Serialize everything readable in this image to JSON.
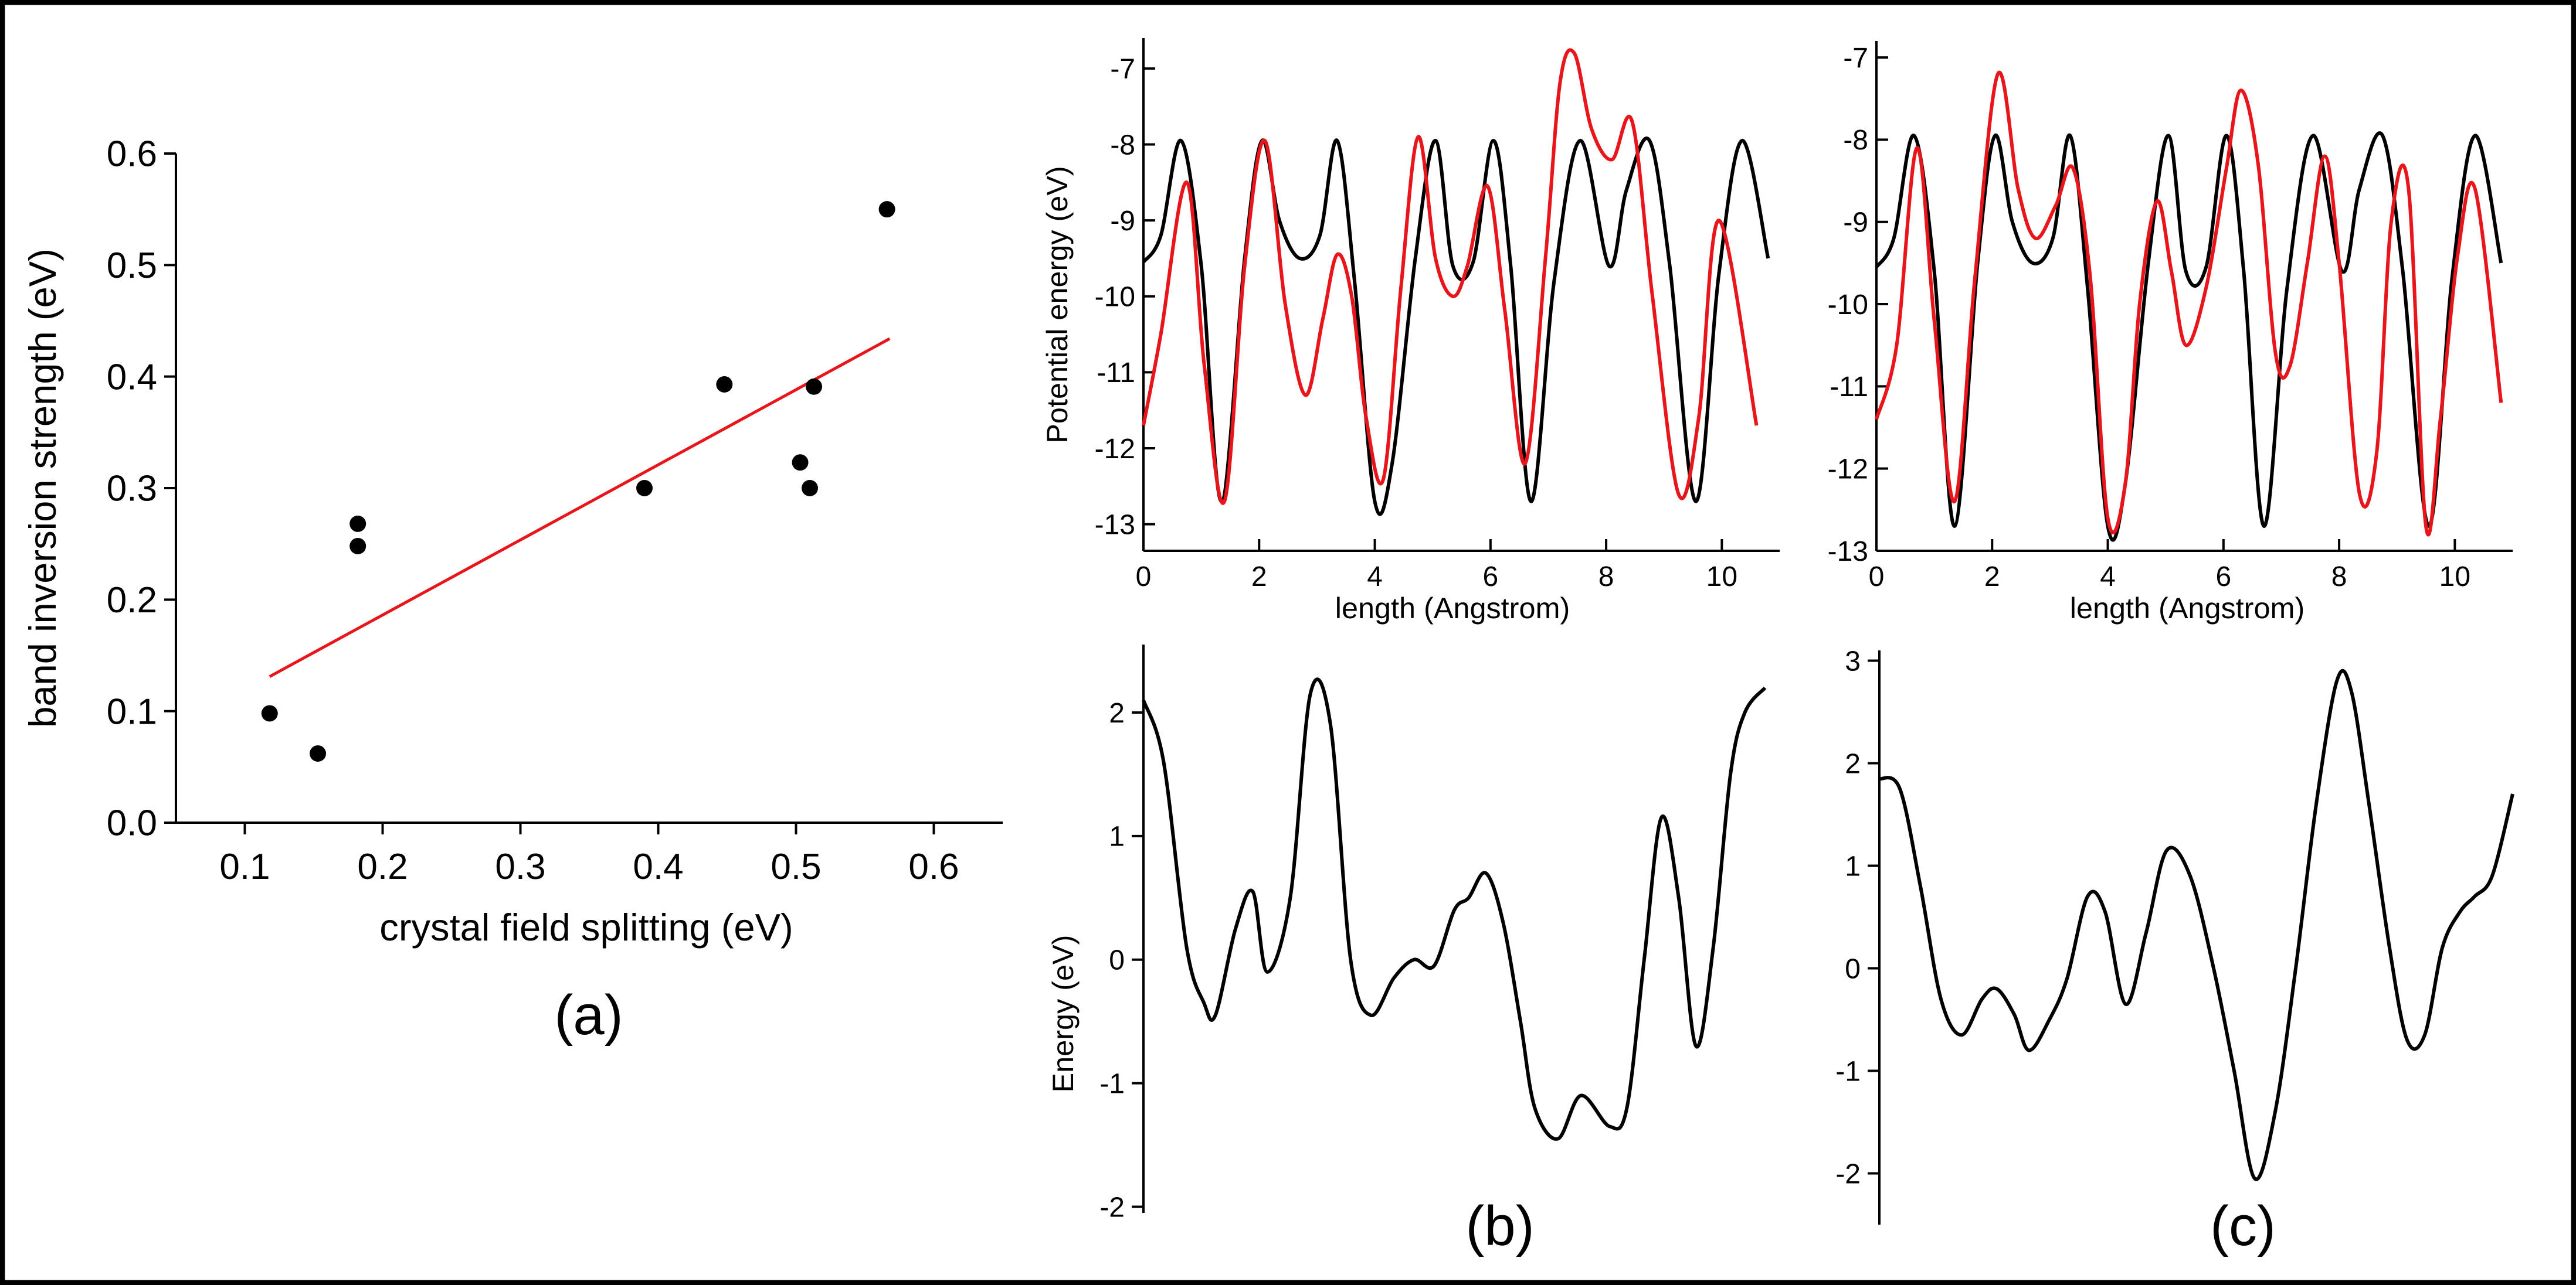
{
  "panel_labels": {
    "a": "(a)",
    "b": "(b)",
    "c": "(c)"
  },
  "colors": {
    "black": "#000000",
    "red": "#e8151b",
    "frame": "#000000"
  },
  "chart_data": [
    {
      "id": "a",
      "type": "scatter",
      "xlabel": "crystal field splitting (eV)",
      "ylabel": "band inversion strength (eV)",
      "xlim": [
        0.05,
        0.65
      ],
      "ylim": [
        0.0,
        0.6
      ],
      "xticks": [
        0.1,
        0.2,
        0.3,
        0.4,
        0.5,
        0.6
      ],
      "xtick_labels": [
        "0.1",
        "0.2",
        "0.3",
        "0.4",
        "0.5",
        "0.6"
      ],
      "yticks": [
        0.0,
        0.1,
        0.2,
        0.3,
        0.4,
        0.5,
        0.6
      ],
      "ytick_labels": [
        "0.0",
        "0.1",
        "0.2",
        "0.3",
        "0.4",
        "0.5",
        "0.6"
      ],
      "points": [
        [
          0.118,
          0.098
        ],
        [
          0.153,
          0.062
        ],
        [
          0.182,
          0.268
        ],
        [
          0.182,
          0.248
        ],
        [
          0.39,
          0.3
        ],
        [
          0.448,
          0.393
        ],
        [
          0.503,
          0.323
        ],
        [
          0.51,
          0.3
        ],
        [
          0.513,
          0.391
        ],
        [
          0.566,
          0.55
        ]
      ],
      "fit_line": {
        "x": [
          0.118,
          0.568
        ],
        "y": [
          0.131,
          0.434
        ]
      }
    },
    {
      "id": "b-top",
      "type": "line",
      "xlabel": "length (Angstrom)",
      "ylabel": "Potential energy (eV)",
      "xlim": [
        0,
        11
      ],
      "ylim": [
        -13.35,
        -6.6
      ],
      "xticks": [
        0,
        2,
        4,
        6,
        8,
        10
      ],
      "xtick_labels": [
        "0",
        "2",
        "4",
        "6",
        "8",
        "10"
      ],
      "yticks": [
        -13,
        -12,
        -11,
        -10,
        -9,
        -8,
        -7
      ],
      "ytick_labels": [
        "-13",
        "-12",
        "-11",
        "-10",
        "-9",
        "-8",
        "-7"
      ],
      "series": [
        {
          "name": "black",
          "x": [
            0,
            0.3,
            0.65,
            1,
            1.35,
            1.75,
            2.05,
            2.35,
            2.7,
            3.05,
            3.35,
            3.65,
            4,
            4.3,
            4.7,
            5.05,
            5.35,
            5.7,
            6.05,
            6.35,
            6.7,
            7.1,
            7.55,
            8.05,
            8.35,
            8.75,
            9.1,
            9.55,
            9.95,
            10.35,
            10.8
          ],
          "y": [
            -9.55,
            -9.2,
            -7.95,
            -9.6,
            -12.7,
            -9.5,
            -7.95,
            -9,
            -9.5,
            -9.2,
            -7.95,
            -9.8,
            -12.7,
            -12.2,
            -9.5,
            -7.95,
            -9.6,
            -9.55,
            -7.95,
            -9.6,
            -12.7,
            -9.8,
            -7.95,
            -9.6,
            -8.6,
            -7.95,
            -9.6,
            -12.7,
            -9.7,
            -7.95,
            -9.5
          ]
        },
        {
          "name": "red",
          "x": [
            0,
            0.3,
            0.75,
            1.05,
            1.4,
            1.75,
            2.1,
            2.45,
            2.8,
            3.1,
            3.35,
            3.6,
            3.85,
            4.15,
            4.45,
            4.75,
            5.05,
            5.35,
            5.6,
            5.95,
            6.25,
            6.6,
            6.95,
            7.2,
            7.45,
            7.75,
            8.1,
            8.45,
            8.8,
            9.25,
            9.6,
            9.95,
            10.6
          ],
          "y": [
            -11.7,
            -10.5,
            -8.5,
            -10.9,
            -12.7,
            -9.6,
            -7.95,
            -10.1,
            -11.3,
            -10.3,
            -9.45,
            -10.0,
            -11.6,
            -12.4,
            -9.9,
            -7.9,
            -9.5,
            -10.0,
            -9.6,
            -8.55,
            -10.2,
            -12.2,
            -9.5,
            -7.2,
            -6.8,
            -7.8,
            -8.2,
            -7.7,
            -10.0,
            -12.6,
            -11.6,
            -9.0,
            -11.7
          ]
        }
      ]
    },
    {
      "id": "c-top",
      "type": "line",
      "xlabel": "length (Angstrom)",
      "ylabel": "",
      "xlim": [
        0,
        11
      ],
      "ylim": [
        -13,
        -6.8
      ],
      "xticks": [
        0,
        2,
        4,
        6,
        8,
        10
      ],
      "xtick_labels": [
        "0",
        "2",
        "4",
        "6",
        "8",
        "10"
      ],
      "yticks": [
        -13,
        -12,
        -11,
        -10,
        -9,
        -8,
        -7
      ],
      "ytick_labels": [
        "-13",
        "-12",
        "-11",
        "-10",
        "-9",
        "-8",
        "-7"
      ],
      "series": [
        {
          "name": "black",
          "x": [
            0,
            0.3,
            0.65,
            1,
            1.35,
            1.75,
            2.05,
            2.35,
            2.7,
            3.05,
            3.35,
            3.65,
            4,
            4.3,
            4.7,
            5.05,
            5.35,
            5.7,
            6.05,
            6.35,
            6.7,
            7.1,
            7.55,
            8.05,
            8.35,
            8.75,
            9.1,
            9.55,
            9.95,
            10.35,
            10.8
          ],
          "y": [
            -9.55,
            -9.2,
            -7.95,
            -9.6,
            -12.7,
            -9.5,
            -7.95,
            -9,
            -9.5,
            -9.2,
            -7.95,
            -9.8,
            -12.7,
            -12.2,
            -9.5,
            -7.95,
            -9.6,
            -9.55,
            -7.95,
            -9.6,
            -12.7,
            -9.8,
            -7.95,
            -9.6,
            -8.6,
            -7.95,
            -9.6,
            -12.7,
            -9.7,
            -7.95,
            -9.5
          ]
        },
        {
          "name": "red",
          "x": [
            0,
            0.35,
            0.7,
            1.0,
            1.35,
            1.7,
            2.1,
            2.45,
            2.75,
            3.1,
            3.4,
            3.7,
            4.0,
            4.3,
            4.55,
            4.85,
            5.1,
            5.35,
            5.7,
            6.05,
            6.3,
            6.6,
            6.9,
            7.15,
            7.45,
            7.75,
            8.0,
            8.35,
            8.65,
            8.9,
            9.2,
            9.5,
            9.75,
            10.05,
            10.35,
            10.8
          ],
          "y": [
            -11.4,
            -10.5,
            -8.1,
            -10.2,
            -12.4,
            -9.7,
            -7.2,
            -8.6,
            -9.2,
            -8.8,
            -8.35,
            -9.7,
            -12.6,
            -12.2,
            -10.0,
            -8.75,
            -9.6,
            -10.5,
            -9.8,
            -8.35,
            -7.4,
            -8.3,
            -10.6,
            -10.75,
            -9.5,
            -8.2,
            -9.5,
            -12.3,
            -11.8,
            -9.0,
            -8.6,
            -12.7,
            -11.4,
            -9.4,
            -8.6,
            -11.2
          ]
        }
      ]
    },
    {
      "id": "b-bottom",
      "type": "line",
      "xlabel": "",
      "ylabel": "Energy (eV)",
      "xlim": [
        0,
        10.8
      ],
      "ylim": [
        -2.05,
        2.55
      ],
      "yticks": [
        -2,
        -1,
        0,
        1,
        2
      ],
      "ytick_labels": [
        "-2",
        "-1",
        "0",
        "1",
        "2"
      ],
      "series": [
        {
          "name": "black",
          "x": [
            0,
            0.35,
            0.75,
            1.05,
            1.25,
            1.6,
            1.9,
            2.15,
            2.55,
            2.9,
            3.25,
            3.6,
            3.95,
            4.35,
            4.7,
            5.05,
            5.4,
            5.65,
            5.95,
            6.25,
            6.55,
            6.8,
            7.2,
            7.6,
            8.1,
            8.4,
            8.7,
            9.0,
            9.3,
            9.6,
            9.9,
            10.2,
            10.45,
            10.8
          ],
          "y": [
            2.1,
            1.6,
            0.1,
            -0.35,
            -0.45,
            0.25,
            0.55,
            -0.1,
            0.5,
            2.15,
            1.9,
            0.0,
            -0.45,
            -0.15,
            -0.0,
            -0.05,
            0.4,
            0.5,
            0.7,
            0.3,
            -0.5,
            -1.2,
            -1.45,
            -1.1,
            -1.35,
            -1.2,
            0.0,
            1.15,
            0.5,
            -0.7,
            0.1,
            1.5,
            2.0,
            2.2
          ]
        }
      ]
    },
    {
      "id": "c-bottom",
      "type": "line",
      "xlabel": "",
      "ylabel": "",
      "xlim": [
        0,
        10.8
      ],
      "ylim": [
        -2.5,
        3.1
      ],
      "yticks": [
        -2,
        -1,
        0,
        1,
        2,
        3
      ],
      "ytick_labels": [
        "-2",
        "-1",
        "0",
        "1",
        "2",
        "3"
      ],
      "series": [
        {
          "name": "black",
          "x": [
            0,
            0.35,
            0.7,
            1.05,
            1.4,
            1.75,
            2.0,
            2.3,
            2.55,
            2.9,
            3.2,
            3.55,
            3.85,
            4.2,
            4.55,
            4.9,
            5.3,
            5.7,
            6.05,
            6.4,
            6.75,
            7.1,
            7.45,
            7.8,
            8.05,
            8.35,
            8.7,
            9.0,
            9.3,
            9.6,
            9.9,
            10.15,
            10.45,
            10.8
          ],
          "y": [
            1.85,
            1.75,
            0.8,
            -0.3,
            -0.65,
            -0.3,
            -0.2,
            -0.45,
            -0.8,
            -0.5,
            -0.1,
            0.7,
            0.55,
            -0.35,
            0.35,
            1.15,
            0.9,
            0.0,
            -1.0,
            -2.05,
            -1.4,
            0.0,
            1.6,
            2.8,
            2.7,
            1.6,
            0.2,
            -0.7,
            -0.65,
            0.2,
            0.55,
            0.7,
            0.9,
            1.7
          ]
        }
      ]
    }
  ]
}
